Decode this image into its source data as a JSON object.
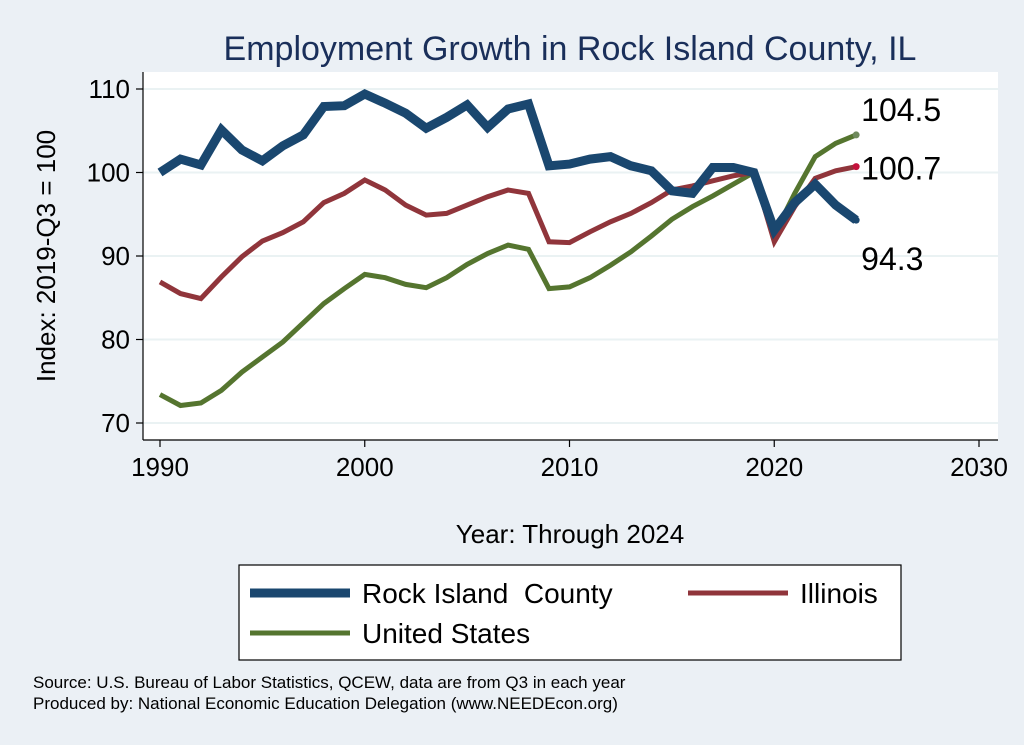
{
  "chart_data": {
    "type": "line",
    "title": "Employment Growth in Rock Island County, IL",
    "xlabel": "Year: Through 2024",
    "ylabel": "Index: 2019-Q3 = 100",
    "xlim": [
      1990,
      2030
    ],
    "ylim": [
      70,
      110
    ],
    "xticks": [
      1990,
      2000,
      2010,
      2020,
      2030
    ],
    "yticks": [
      70,
      80,
      90,
      100,
      110
    ],
    "grid": "horizontal",
    "legend_position": "bottom",
    "x": [
      1990,
      1991,
      1992,
      1993,
      1994,
      1995,
      1996,
      1997,
      1998,
      1999,
      2000,
      2001,
      2002,
      2003,
      2004,
      2005,
      2006,
      2007,
      2008,
      2009,
      2010,
      2011,
      2012,
      2013,
      2014,
      2015,
      2016,
      2017,
      2018,
      2019,
      2020,
      2021,
      2022,
      2023,
      2024
    ],
    "series": [
      {
        "name": "Rock Island  County",
        "color": "#1a476f",
        "end_label": "94.3",
        "values": [
          100.0,
          101.6,
          100.9,
          105.1,
          102.7,
          101.4,
          103.2,
          104.5,
          107.9,
          108.0,
          109.4,
          108.3,
          107.1,
          105.3,
          106.6,
          108.1,
          105.4,
          107.6,
          108.2,
          100.8,
          101.0,
          101.6,
          101.9,
          100.8,
          100.2,
          97.8,
          97.5,
          100.6,
          100.6,
          100.0,
          93.1,
          96.4,
          98.6,
          96.1,
          94.3
        ]
      },
      {
        "name": "Illinois",
        "color": "#90353b",
        "end_label": "100.7",
        "values": [
          86.9,
          85.5,
          84.9,
          87.5,
          89.9,
          91.8,
          92.8,
          94.1,
          96.4,
          97.5,
          99.1,
          97.9,
          96.1,
          94.9,
          95.1,
          96.1,
          97.1,
          97.9,
          97.5,
          91.7,
          91.6,
          92.9,
          94.1,
          95.1,
          96.4,
          97.9,
          98.4,
          99.0,
          99.6,
          100.0,
          91.7,
          95.9,
          99.3,
          100.2,
          100.7
        ]
      },
      {
        "name": "United States",
        "color": "#55752f",
        "end_label": "104.5",
        "values": [
          73.4,
          72.1,
          72.4,
          73.9,
          76.1,
          77.9,
          79.7,
          82.0,
          84.3,
          86.1,
          87.8,
          87.4,
          86.6,
          86.2,
          87.4,
          89.0,
          90.3,
          91.3,
          90.8,
          86.1,
          86.3,
          87.4,
          88.9,
          90.5,
          92.4,
          94.4,
          95.9,
          97.2,
          98.6,
          100.0,
          92.6,
          97.5,
          101.9,
          103.5,
          104.5
        ]
      }
    ]
  },
  "legend": {
    "items": [
      {
        "label": "Rock Island  County"
      },
      {
        "label": "Illinois"
      },
      {
        "label": "United States"
      }
    ]
  },
  "notes": {
    "source": "Source: U.S. Bureau of Labor Statistics, QCEW, data are from Q3 in each year",
    "produced": "Produced by: National Economic Education Delegation (www.NEEDEcon.org)"
  }
}
